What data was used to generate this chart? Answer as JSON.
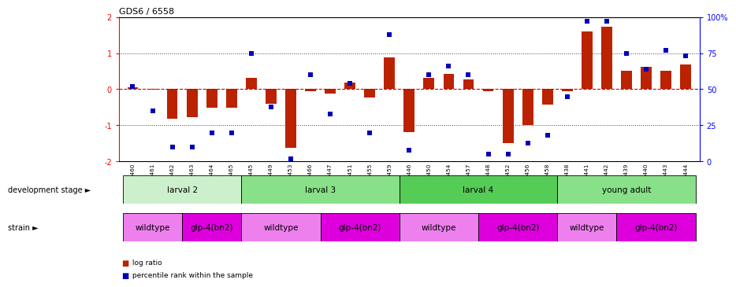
{
  "title": "GDS6 / 6558",
  "samples": [
    "GSM460",
    "GSM461",
    "GSM462",
    "GSM463",
    "GSM464",
    "GSM465",
    "GSM445",
    "GSM449",
    "GSM453",
    "GSM466",
    "GSM447",
    "GSM451",
    "GSM455",
    "GSM459",
    "GSM446",
    "GSM450",
    "GSM454",
    "GSM457",
    "GSM448",
    "GSM452",
    "GSM456",
    "GSM458",
    "GSM438",
    "GSM441",
    "GSM442",
    "GSM439",
    "GSM440",
    "GSM443",
    "GSM444"
  ],
  "log_ratio": [
    0.05,
    -0.02,
    -0.82,
    -0.78,
    -0.52,
    -0.52,
    0.32,
    -0.4,
    -1.62,
    -0.05,
    -0.12,
    0.18,
    -0.22,
    0.88,
    -1.18,
    0.32,
    0.42,
    0.28,
    -0.05,
    -1.48,
    -0.98,
    -0.42,
    -0.05,
    1.6,
    1.72,
    0.52,
    0.62,
    0.52,
    0.68
  ],
  "percentile": [
    52,
    35,
    10,
    10,
    20,
    20,
    75,
    38,
    2,
    60,
    33,
    54,
    20,
    88,
    8,
    60,
    66,
    60,
    5,
    5,
    13,
    18,
    45,
    97,
    97,
    75,
    64,
    77,
    73
  ],
  "dev_stage_groups": [
    {
      "label": "larval 2",
      "start": 0,
      "end": 5,
      "color": "#ccf0cc"
    },
    {
      "label": "larval 3",
      "start": 6,
      "end": 13,
      "color": "#88e088"
    },
    {
      "label": "larval 4",
      "start": 14,
      "end": 21,
      "color": "#55cc55"
    },
    {
      "label": "young adult",
      "start": 22,
      "end": 28,
      "color": "#88e088"
    }
  ],
  "strain_groups": [
    {
      "label": "wildtype",
      "start": 0,
      "end": 2,
      "color": "#ee80ee"
    },
    {
      "label": "glp-4(bn2)",
      "start": 3,
      "end": 5,
      "color": "#dd00dd"
    },
    {
      "label": "wildtype",
      "start": 6,
      "end": 9,
      "color": "#ee80ee"
    },
    {
      "label": "glp-4(bn2)",
      "start": 10,
      "end": 13,
      "color": "#dd00dd"
    },
    {
      "label": "wildtype",
      "start": 14,
      "end": 17,
      "color": "#ee80ee"
    },
    {
      "label": "glp-4(bn2)",
      "start": 18,
      "end": 21,
      "color": "#dd00dd"
    },
    {
      "label": "wildtype",
      "start": 22,
      "end": 24,
      "color": "#ee80ee"
    },
    {
      "label": "glp-4(bn2)",
      "start": 25,
      "end": 28,
      "color": "#dd00dd"
    }
  ],
  "bar_color": "#bb2200",
  "dot_color": "#0000bb",
  "ylim_left": [
    -2.0,
    2.0
  ],
  "yticks_left": [
    -2,
    -1,
    0,
    1,
    2
  ],
  "yticks_right": [
    0,
    25,
    50,
    75,
    100
  ],
  "ytick_labels_right": [
    "0",
    "25",
    "50",
    "75",
    "100%"
  ],
  "hline_color": "#cc0000",
  "dotted_color": "#444444"
}
